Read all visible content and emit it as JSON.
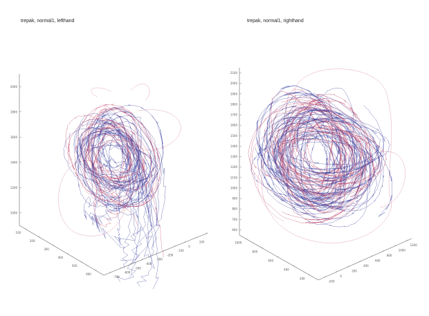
{
  "colors": {
    "blue": "#3a3f9e",
    "red": "#c0486a",
    "axis": "#666666"
  },
  "chart_data": [
    {
      "type": "line",
      "title": "trepak, normal1, lefthand",
      "series": [],
      "axes": {
        "z_ticks": [
          "1000",
          "1200",
          "1400",
          "1600",
          "1800",
          "2000"
        ],
        "left_ticks": [
          "100",
          "200",
          "300",
          "400",
          "500",
          "600"
        ],
        "right_ticks": [
          "-700",
          "-600",
          "-500",
          "-400",
          "-300",
          "-200",
          "-100",
          "0",
          "100",
          "200"
        ]
      },
      "grid": false
    },
    {
      "type": "line",
      "title": "trepak, normal1, righthand",
      "series": [],
      "axes": {
        "z_ticks": [
          "600",
          "700",
          "800",
          "900",
          "1000",
          "1100",
          "1200",
          "1300",
          "1400",
          "1500",
          "1600",
          "1700",
          "1800",
          "1900",
          "2000",
          "2100"
        ],
        "left_ticks": [
          "1000",
          "800",
          "600",
          "400",
          "200"
        ],
        "right_ticks": [
          "-200",
          "0",
          "200",
          "400",
          "600",
          "800",
          "1000",
          "1200"
        ]
      },
      "grid": false
    }
  ]
}
